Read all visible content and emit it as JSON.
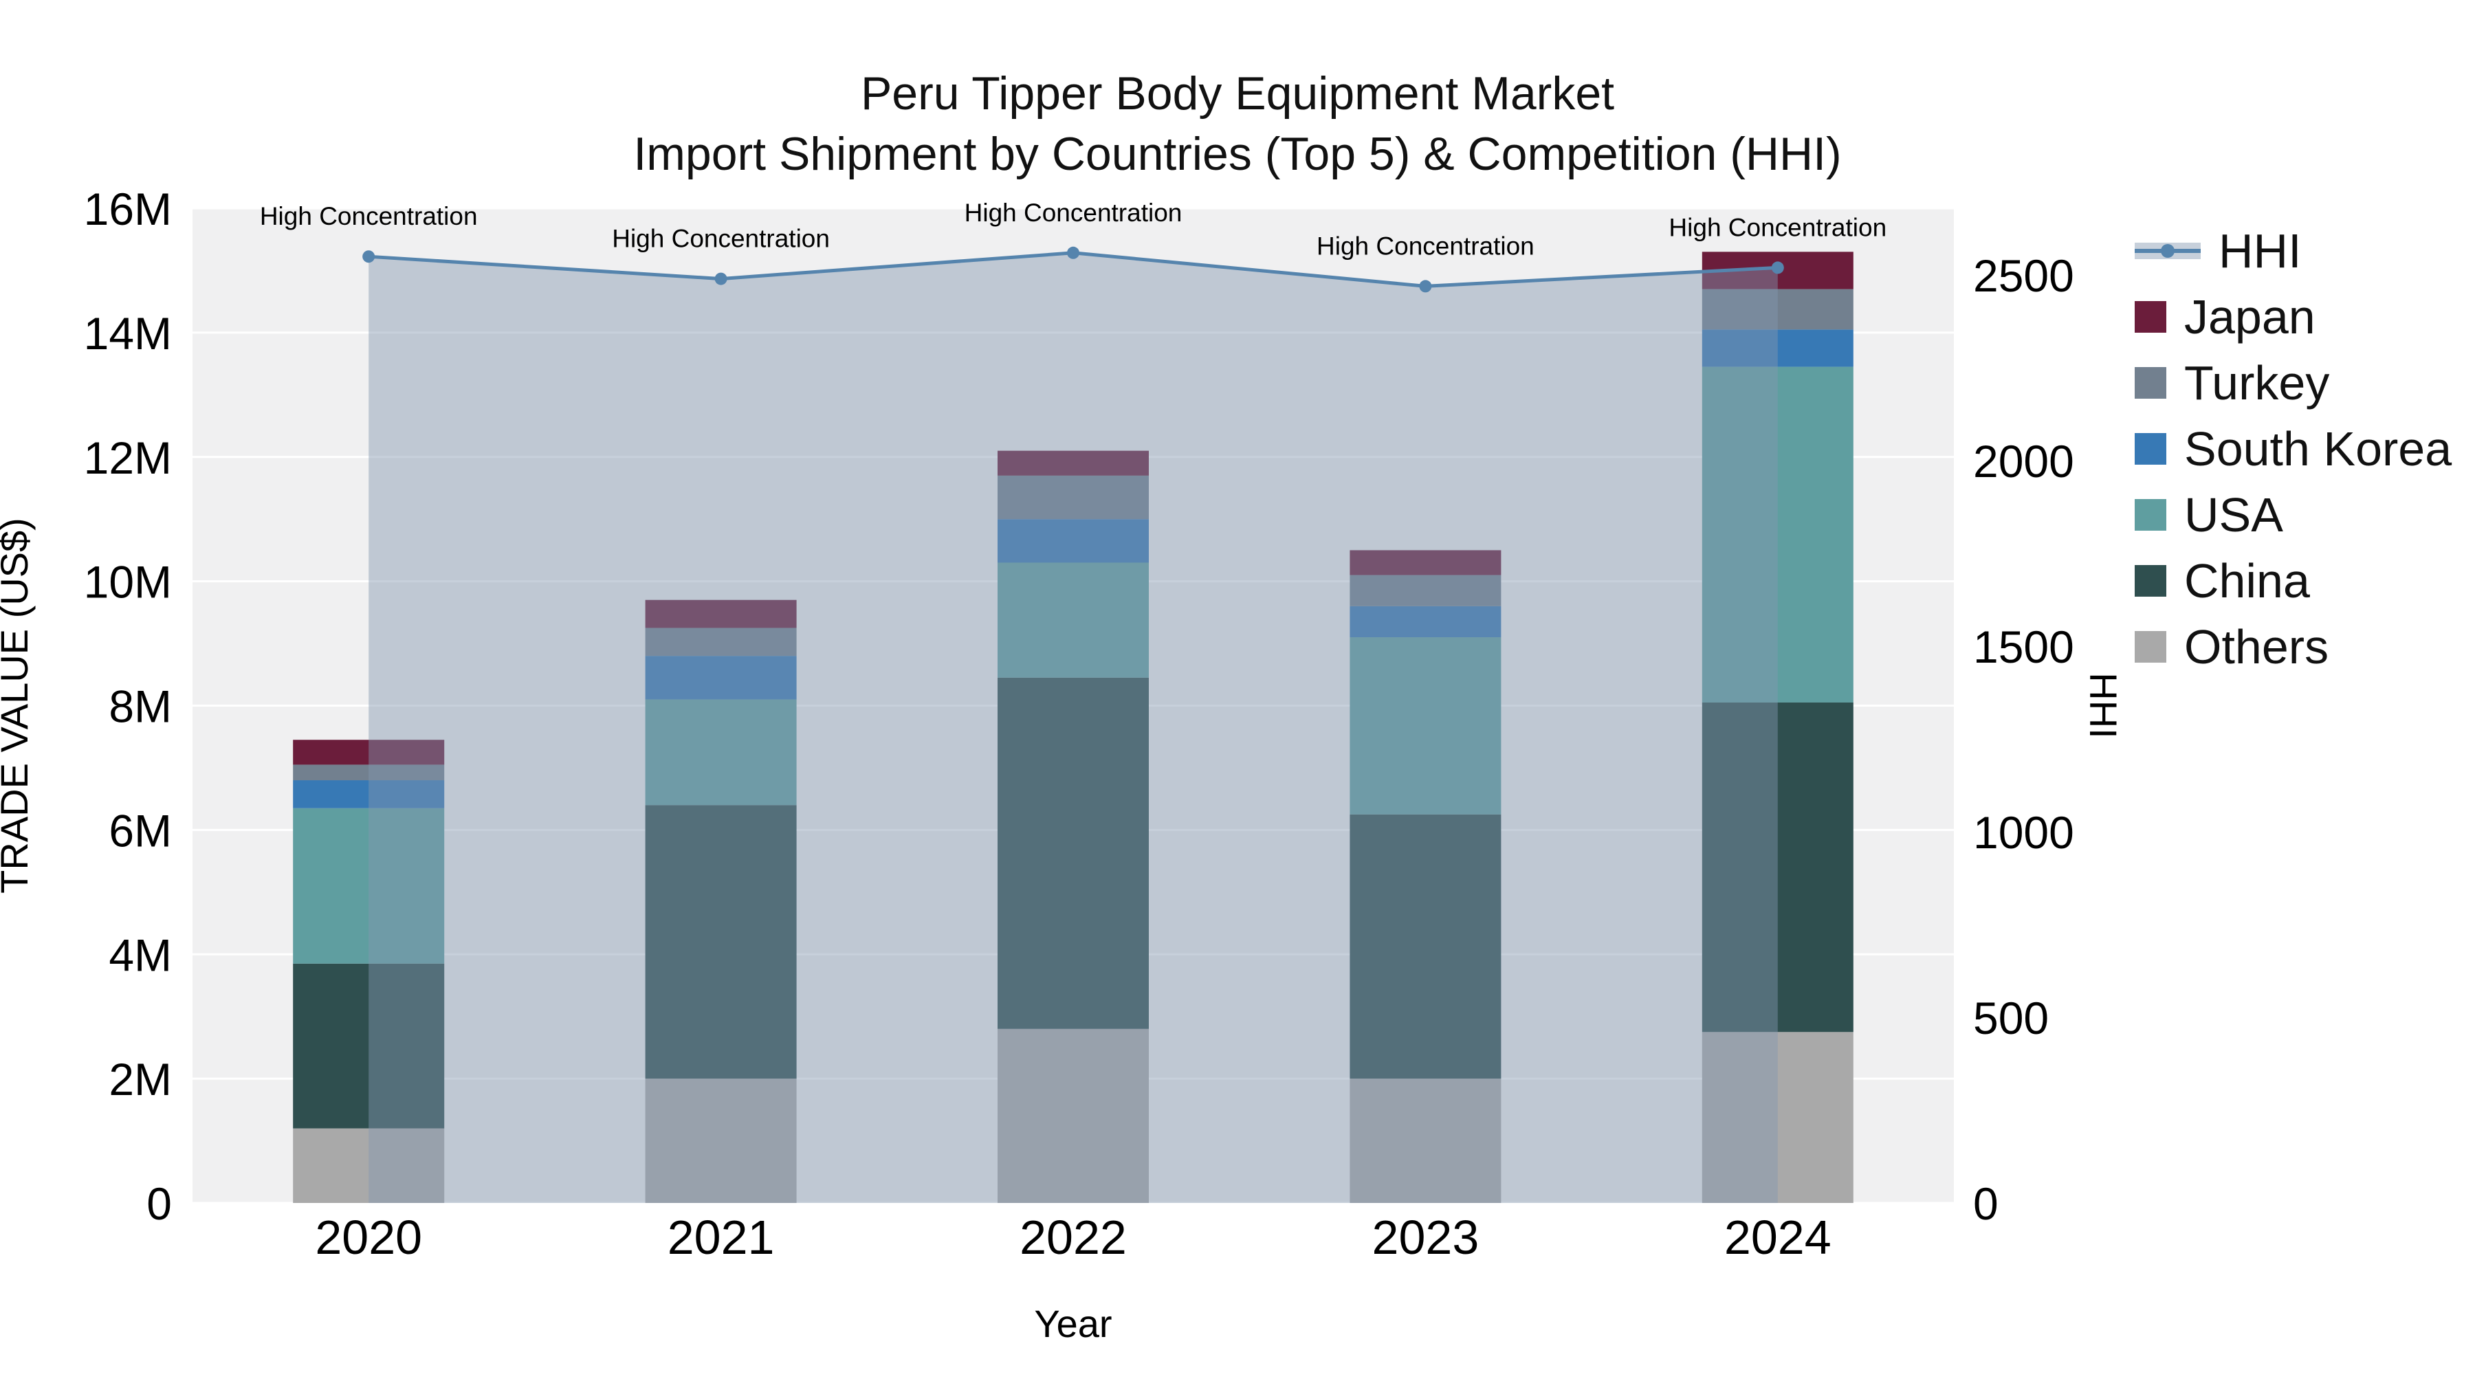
{
  "title_line1": "Peru Tipper Body Equipment Market",
  "title_line2": "Import Shipment by Countries (Top 5) & Competition (HHI)",
  "chart_data": {
    "type": "stacked-bar+line",
    "title": "Peru Tipper Body Equipment Market — Import Shipment by Countries (Top 5) & Competition (HHI)",
    "categories": [
      "2020",
      "2021",
      "2022",
      "2023",
      "2024"
    ],
    "x_label": "Year",
    "y_left": {
      "label": "TRADE VALUE (US$)",
      "max": 16000000,
      "tick_step": 2000000,
      "tick_labels": [
        "0",
        "2M",
        "4M",
        "6M",
        "8M",
        "10M",
        "12M",
        "14M",
        "16M"
      ]
    },
    "y_right": {
      "label": "HHI",
      "max": 2680,
      "tick_values": [
        0,
        500,
        1000,
        1500,
        2000,
        2500
      ],
      "tick_labels": [
        "0",
        "500",
        "1000",
        "1500",
        "2000",
        "2500"
      ]
    },
    "bar_series": [
      {
        "name": "Others",
        "color": "#a9a9a9",
        "values": [
          1200000,
          2000000,
          2800000,
          2000000,
          2750000
        ]
      },
      {
        "name": "China",
        "color": "#2f4f4f",
        "values": [
          2650000,
          4400000,
          5650000,
          4250000,
          5300000
        ]
      },
      {
        "name": "USA",
        "color": "#5f9ea0",
        "values": [
          2500000,
          1700000,
          1850000,
          2850000,
          5400000
        ]
      },
      {
        "name": "South Korea",
        "color": "#3779b5",
        "values": [
          450000,
          700000,
          700000,
          500000,
          600000
        ]
      },
      {
        "name": "Turkey",
        "color": "#72808f",
        "values": [
          250000,
          450000,
          700000,
          500000,
          650000
        ]
      },
      {
        "name": "Japan",
        "color": "#6b1d3b",
        "values": [
          400000,
          450000,
          400000,
          400000,
          600000
        ]
      }
    ],
    "line_series": {
      "name": "HHI",
      "color": "#5584ad",
      "fill_color": "rgba(130,150,175,0.45)",
      "values": [
        2550,
        2490,
        2560,
        2470,
        2520
      ]
    },
    "annotations": {
      "text": "High Concentration"
    },
    "plot_background": "#f0f0f1",
    "gridline_color": "#ffffff"
  },
  "legend": {
    "items": [
      {
        "label": "HHI",
        "type": "line",
        "color": "#5584ad"
      },
      {
        "label": "Japan",
        "type": "swatch",
        "color": "#6b1d3b"
      },
      {
        "label": "Turkey",
        "type": "swatch",
        "color": "#72808f"
      },
      {
        "label": "South Korea",
        "type": "swatch",
        "color": "#3779b5"
      },
      {
        "label": "USA",
        "type": "swatch",
        "color": "#5f9ea0"
      },
      {
        "label": "China",
        "type": "swatch",
        "color": "#2f4f4f"
      },
      {
        "label": "Others",
        "type": "swatch",
        "color": "#a9a9a9"
      }
    ]
  }
}
